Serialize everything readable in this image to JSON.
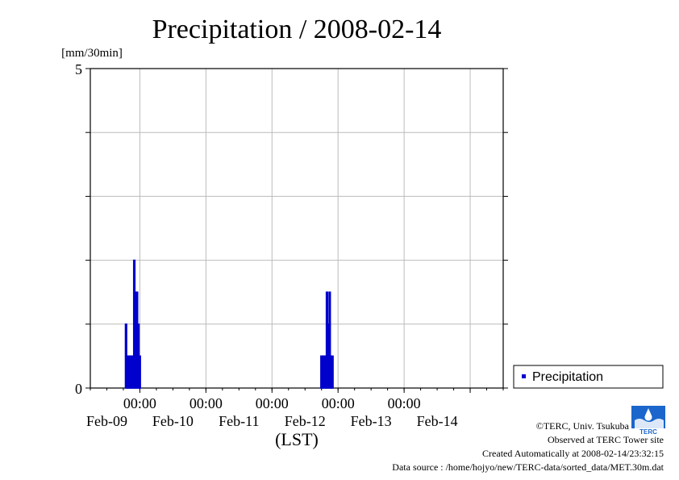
{
  "chart_data": {
    "type": "bar",
    "title": "Precipitation / 2008-02-14",
    "ylabel": "[mm/30min]",
    "xlabel": "(LST)",
    "ylim": [
      0,
      5
    ],
    "ytick_labels": [
      "0",
      "5"
    ],
    "x_range": [
      "2008-02-08 06:00",
      "2008-02-14 12:00"
    ],
    "x_tick_time_label": "00:00",
    "x_date_labels": [
      "Feb-09",
      "Feb-10",
      "Feb-11",
      "Feb-12",
      "Feb-13",
      "Feb-14"
    ],
    "grid": true,
    "legend_position": "right",
    "bar_color": "#0000cc",
    "series": [
      {
        "name": "Precipitation",
        "points": [
          [
            "2008-02-08 19:00",
            1.0
          ],
          [
            "2008-02-08 19:30",
            0.5
          ],
          [
            "2008-02-08 20:00",
            0.5
          ],
          [
            "2008-02-08 20:30",
            0.5
          ],
          [
            "2008-02-08 21:00",
            0.5
          ],
          [
            "2008-02-08 21:30",
            0.5
          ],
          [
            "2008-02-08 22:00",
            2.0
          ],
          [
            "2008-02-08 22:30",
            1.5
          ],
          [
            "2008-02-08 23:00",
            1.5
          ],
          [
            "2008-02-08 23:30",
            1.0
          ],
          [
            "2008-02-09 00:00",
            0.5
          ],
          [
            "2008-02-11 18:00",
            0.5
          ],
          [
            "2008-02-11 18:30",
            0.5
          ],
          [
            "2008-02-11 19:00",
            0.5
          ],
          [
            "2008-02-11 19:30",
            0.5
          ],
          [
            "2008-02-11 20:00",
            1.5
          ],
          [
            "2008-02-11 20:30",
            1.0
          ],
          [
            "2008-02-11 21:00",
            1.5
          ],
          [
            "2008-02-11 21:30",
            0.5
          ],
          [
            "2008-02-11 22:00",
            0.5
          ]
        ]
      }
    ]
  },
  "footer": {
    "copyright": "©TERC, Univ. Tsukuba",
    "observed": "Observed at TERC Tower site",
    "created": "Created Automatically at 2008-02-14/23:32:15",
    "source": "Data source : /home/hojyo/new/TERC-data/sorted_data/MET.30m.dat"
  },
  "logo": {
    "text": "TERC",
    "icon": "terc-logo-icon",
    "color": "#1a66cc"
  }
}
